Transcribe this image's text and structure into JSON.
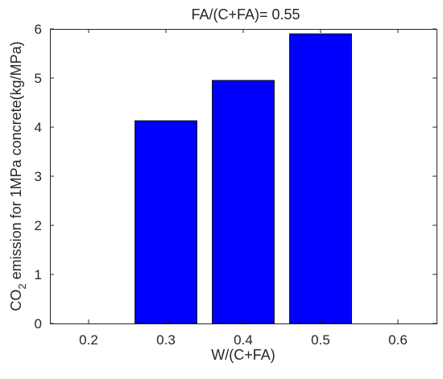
{
  "chart_data": {
    "type": "bar",
    "title": "FA/(C+FA)= 0.55",
    "xlabel": "W/(C+FA)",
    "ylabel_parts": {
      "prefix": "CO",
      "subscript": "2",
      "suffix": " emission for 1MPa concrete(kg/MPa)"
    },
    "x": [
      0.3,
      0.4,
      0.5
    ],
    "values": [
      4.13,
      4.95,
      5.9
    ],
    "xlim": [
      0.15,
      0.65
    ],
    "ylim": [
      0,
      6
    ],
    "xticks": [
      0.2,
      0.3,
      0.4,
      0.5,
      0.6
    ],
    "xtick_labels": [
      "0.2",
      "0.3",
      "0.4",
      "0.5",
      "0.6"
    ],
    "yticks": [
      0,
      1,
      2,
      3,
      4,
      5,
      6
    ],
    "ytick_labels": [
      "0",
      "1",
      "2",
      "3",
      "4",
      "5",
      "6"
    ],
    "bar_width": 0.08,
    "bar_color": "#0000ff",
    "bar_edge_color": "#000000",
    "grid": false,
    "legend": "none"
  }
}
